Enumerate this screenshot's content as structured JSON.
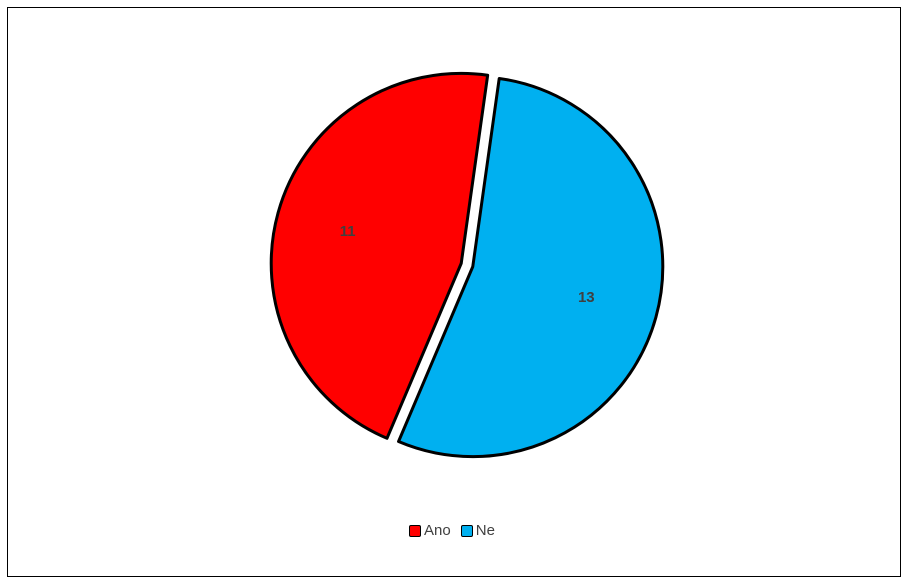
{
  "chart_data": {
    "type": "pie",
    "title": "",
    "categories": [
      "Ano",
      "Ne"
    ],
    "values": [
      11,
      13
    ],
    "colors": [
      "#ff0000",
      "#00b0f0"
    ],
    "exploded": true,
    "legend_position": "bottom"
  }
}
